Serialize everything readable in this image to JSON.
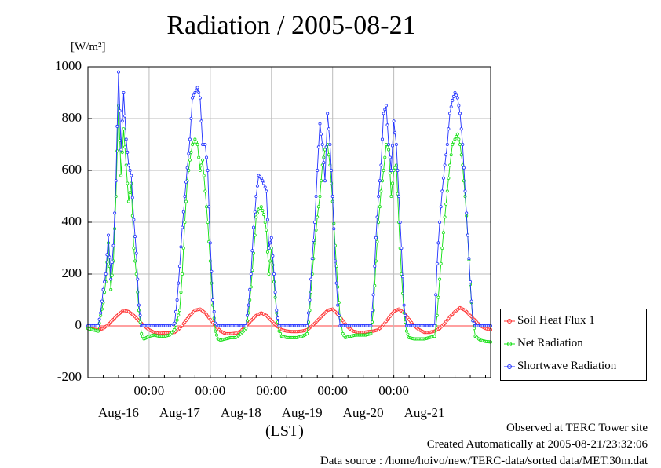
{
  "chart_data": {
    "type": "line",
    "title": "Radiation / 2005-08-21",
    "ylabel_unit": "[W/m²]",
    "xlabel": "(LST)",
    "ylim": [
      -200,
      1000
    ],
    "yticks": [
      -200,
      0,
      200,
      400,
      600,
      800,
      1000
    ],
    "x_time_ticks": [
      "00:00",
      "00:00",
      "00:00",
      "00:00",
      "00:00"
    ],
    "x_day_labels": [
      "Aug-16",
      "Aug-17",
      "Aug-18",
      "Aug-19",
      "Aug-20",
      "Aug-21"
    ],
    "x_range_hours": [
      -72,
      72
    ],
    "grid": true,
    "legend_position": "bottom-right, outside plot",
    "series": [
      {
        "name": "Soil Heat Flux 1",
        "color": "#ff3030",
        "points": [
          [
            -72,
            -10
          ],
          [
            -70,
            -12
          ],
          [
            -68,
            -15
          ],
          [
            -66,
            -10
          ],
          [
            -64,
            5
          ],
          [
            -62,
            25
          ],
          [
            -60,
            45
          ],
          [
            -58,
            60
          ],
          [
            -56,
            55
          ],
          [
            -54,
            40
          ],
          [
            -52,
            20
          ],
          [
            -50,
            0
          ],
          [
            -48,
            -15
          ],
          [
            -46,
            -25
          ],
          [
            -44,
            -28
          ],
          [
            -42,
            -27
          ],
          [
            -40,
            -27
          ],
          [
            -38,
            -25
          ],
          [
            -36,
            -10
          ],
          [
            -34,
            15
          ],
          [
            -32,
            40
          ],
          [
            -30,
            60
          ],
          [
            -28,
            65
          ],
          [
            -26,
            50
          ],
          [
            -24,
            25
          ],
          [
            -22,
            0
          ],
          [
            -20,
            -20
          ],
          [
            -18,
            -30
          ],
          [
            -16,
            -30
          ],
          [
            -14,
            -28
          ],
          [
            -12,
            -20
          ],
          [
            -10,
            0
          ],
          [
            -8,
            20
          ],
          [
            -6,
            40
          ],
          [
            -4,
            50
          ],
          [
            -2,
            40
          ],
          [
            0,
            20
          ],
          [
            2,
            0
          ],
          [
            4,
            -15
          ],
          [
            6,
            -20
          ],
          [
            8,
            -22
          ],
          [
            10,
            -22
          ],
          [
            12,
            -20
          ],
          [
            14,
            -15
          ],
          [
            16,
            0
          ],
          [
            18,
            20
          ],
          [
            20,
            40
          ],
          [
            22,
            60
          ],
          [
            24,
            65
          ],
          [
            26,
            45
          ],
          [
            28,
            20
          ],
          [
            30,
            -5
          ],
          [
            32,
            -20
          ],
          [
            34,
            -25
          ],
          [
            36,
            -25
          ],
          [
            38,
            -22
          ],
          [
            40,
            -20
          ],
          [
            42,
            -15
          ],
          [
            44,
            5
          ],
          [
            46,
            30
          ],
          [
            48,
            55
          ],
          [
            50,
            65
          ],
          [
            52,
            50
          ],
          [
            54,
            25
          ],
          [
            56,
            0
          ],
          [
            58,
            -15
          ],
          [
            60,
            -25
          ],
          [
            62,
            -25
          ],
          [
            64,
            -20
          ],
          [
            66,
            -10
          ],
          [
            68,
            10
          ],
          [
            70,
            35
          ],
          [
            72,
            55
          ],
          [
            74,
            70
          ],
          [
            76,
            60
          ],
          [
            78,
            40
          ],
          [
            80,
            20
          ],
          [
            82,
            0
          ],
          [
            84,
            -10
          ],
          [
            86,
            -15
          ]
        ]
      },
      {
        "name": "Net Radiation",
        "color": "#10e010",
        "points": [
          [
            -72,
            -10
          ],
          [
            -70,
            -15
          ],
          [
            -68,
            -20
          ],
          [
            -67,
            40
          ],
          [
            -66,
            90
          ],
          [
            -65,
            170
          ],
          [
            -64,
            320
          ],
          [
            -63,
            140
          ],
          [
            -62,
            250
          ],
          [
            -61,
            500
          ],
          [
            -60,
            850
          ],
          [
            -59,
            580
          ],
          [
            -58,
            760
          ],
          [
            -57,
            620
          ],
          [
            -56,
            480
          ],
          [
            -55,
            550
          ],
          [
            -54,
            300
          ],
          [
            -53,
            200
          ],
          [
            -52,
            60
          ],
          [
            -51,
            -30
          ],
          [
            -50,
            -50
          ],
          [
            -48,
            -40
          ],
          [
            -46,
            -35
          ],
          [
            -44,
            -40
          ],
          [
            -42,
            -40
          ],
          [
            -40,
            -35
          ],
          [
            -38,
            -15
          ],
          [
            -36,
            60
          ],
          [
            -35,
            200
          ],
          [
            -34,
            400
          ],
          [
            -33,
            560
          ],
          [
            -32,
            640
          ],
          [
            -31,
            700
          ],
          [
            -30,
            720
          ],
          [
            -29,
            700
          ],
          [
            -28,
            600
          ],
          [
            -27,
            640
          ],
          [
            -26,
            520
          ],
          [
            -25,
            400
          ],
          [
            -24,
            250
          ],
          [
            -23,
            80
          ],
          [
            -22,
            -20
          ],
          [
            -21,
            -50
          ],
          [
            -20,
            -55
          ],
          [
            -18,
            -50
          ],
          [
            -16,
            -45
          ],
          [
            -14,
            -45
          ],
          [
            -12,
            -30
          ],
          [
            -10,
            -10
          ],
          [
            -9,
            50
          ],
          [
            -8,
            150
          ],
          [
            -7,
            280
          ],
          [
            -6,
            420
          ],
          [
            -5,
            450
          ],
          [
            -4,
            460
          ],
          [
            -3,
            430
          ],
          [
            -2,
            370
          ],
          [
            -1,
            200
          ],
          [
            0,
            300
          ],
          [
            1,
            170
          ],
          [
            2,
            50
          ],
          [
            3,
            -20
          ],
          [
            4,
            -40
          ],
          [
            6,
            -45
          ],
          [
            8,
            -45
          ],
          [
            10,
            -45
          ],
          [
            12,
            -40
          ],
          [
            14,
            -30
          ],
          [
            15,
            60
          ],
          [
            16,
            200
          ],
          [
            17,
            320
          ],
          [
            18,
            420
          ],
          [
            19,
            500
          ],
          [
            20,
            620
          ],
          [
            21,
            680
          ],
          [
            22,
            700
          ],
          [
            23,
            620
          ],
          [
            24,
            480
          ],
          [
            25,
            310
          ],
          [
            26,
            150
          ],
          [
            27,
            30
          ],
          [
            28,
            -30
          ],
          [
            29,
            -45
          ],
          [
            31,
            -40
          ],
          [
            33,
            -35
          ],
          [
            35,
            -35
          ],
          [
            37,
            -35
          ],
          [
            39,
            -30
          ],
          [
            40,
            60
          ],
          [
            41,
            250
          ],
          [
            42,
            400
          ],
          [
            43,
            520
          ],
          [
            44,
            600
          ],
          [
            45,
            700
          ],
          [
            46,
            680
          ],
          [
            47,
            500
          ],
          [
            48,
            600
          ],
          [
            49,
            620
          ],
          [
            50,
            400
          ],
          [
            51,
            200
          ],
          [
            52,
            50
          ],
          [
            53,
            -20
          ],
          [
            54,
            -45
          ],
          [
            56,
            -50
          ],
          [
            58,
            -50
          ],
          [
            60,
            -50
          ],
          [
            62,
            -45
          ],
          [
            64,
            -40
          ],
          [
            65,
            40
          ],
          [
            66,
            180
          ],
          [
            67,
            300
          ],
          [
            68,
            420
          ],
          [
            69,
            520
          ],
          [
            70,
            620
          ],
          [
            71,
            700
          ],
          [
            72,
            720
          ],
          [
            73,
            740
          ],
          [
            74,
            700
          ],
          [
            75,
            620
          ],
          [
            76,
            500
          ],
          [
            77,
            350
          ],
          [
            78,
            160
          ],
          [
            79,
            20
          ],
          [
            80,
            -40
          ],
          [
            82,
            -55
          ],
          [
            84,
            -60
          ],
          [
            86,
            -62
          ]
        ]
      },
      {
        "name": "Shortwave Radiation",
        "color": "#2030ff",
        "points": [
          [
            -72,
            0
          ],
          [
            -68,
            0
          ],
          [
            -67,
            50
          ],
          [
            -66,
            140
          ],
          [
            -65,
            200
          ],
          [
            -64,
            350
          ],
          [
            -63,
            180
          ],
          [
            -62,
            310
          ],
          [
            -61,
            560
          ],
          [
            -60,
            980
          ],
          [
            -59,
            680
          ],
          [
            -58,
            900
          ],
          [
            -57,
            720
          ],
          [
            -56,
            620
          ],
          [
            -55,
            580
          ],
          [
            -54,
            410
          ],
          [
            -53,
            280
          ],
          [
            -52,
            80
          ],
          [
            -51,
            0
          ],
          [
            -47,
            0
          ],
          [
            -43,
            0
          ],
          [
            -39,
            0
          ],
          [
            -38,
            10
          ],
          [
            -37,
            100
          ],
          [
            -36,
            230
          ],
          [
            -35,
            380
          ],
          [
            -34,
            500
          ],
          [
            -33,
            610
          ],
          [
            -32,
            720
          ],
          [
            -31,
            880
          ],
          [
            -30,
            900
          ],
          [
            -29,
            920
          ],
          [
            -28,
            880
          ],
          [
            -27,
            700
          ],
          [
            -26,
            700
          ],
          [
            -25,
            600
          ],
          [
            -24,
            320
          ],
          [
            -23,
            100
          ],
          [
            -22,
            10
          ],
          [
            -21,
            0
          ],
          [
            -17,
            0
          ],
          [
            -13,
            0
          ],
          [
            -10,
            0
          ],
          [
            -9,
            80
          ],
          [
            -8,
            200
          ],
          [
            -7,
            380
          ],
          [
            -6,
            500
          ],
          [
            -5,
            580
          ],
          [
            -4,
            570
          ],
          [
            -3,
            550
          ],
          [
            -2,
            520
          ],
          [
            -1,
            300
          ],
          [
            0,
            340
          ],
          [
            1,
            200
          ],
          [
            2,
            60
          ],
          [
            3,
            0
          ],
          [
            7,
            0
          ],
          [
            11,
            0
          ],
          [
            14,
            0
          ],
          [
            15,
            100
          ],
          [
            16,
            260
          ],
          [
            17,
            400
          ],
          [
            18,
            600
          ],
          [
            19,
            780
          ],
          [
            20,
            700
          ],
          [
            21,
            560
          ],
          [
            22,
            820
          ],
          [
            23,
            700
          ],
          [
            24,
            500
          ],
          [
            25,
            250
          ],
          [
            26,
            80
          ],
          [
            27,
            0
          ],
          [
            31,
            0
          ],
          [
            35,
            0
          ],
          [
            39,
            0
          ],
          [
            40,
            120
          ],
          [
            41,
            340
          ],
          [
            42,
            500
          ],
          [
            43,
            620
          ],
          [
            44,
            820
          ],
          [
            45,
            850
          ],
          [
            46,
            700
          ],
          [
            47,
            600
          ],
          [
            48,
            790
          ],
          [
            49,
            700
          ],
          [
            50,
            500
          ],
          [
            51,
            300
          ],
          [
            52,
            80
          ],
          [
            53,
            0
          ],
          [
            57,
            0
          ],
          [
            61,
            0
          ],
          [
            64,
            0
          ],
          [
            65,
            240
          ],
          [
            66,
            400
          ],
          [
            67,
            520
          ],
          [
            68,
            620
          ],
          [
            69,
            700
          ],
          [
            70,
            820
          ],
          [
            71,
            870
          ],
          [
            72,
            900
          ],
          [
            73,
            880
          ],
          [
            74,
            820
          ],
          [
            75,
            700
          ],
          [
            76,
            520
          ],
          [
            77,
            350
          ],
          [
            78,
            170
          ],
          [
            79,
            20
          ],
          [
            80,
            0
          ],
          [
            84,
            0
          ],
          [
            86,
            0
          ]
        ]
      }
    ]
  },
  "footer": {
    "site": "Observed at TERC Tower site",
    "created": "Created Automatically at 2005-08-21/23:32:06",
    "source": "Data source : /home/hoivo/new/TERC-data/sorted data/MET.30m.dat"
  }
}
